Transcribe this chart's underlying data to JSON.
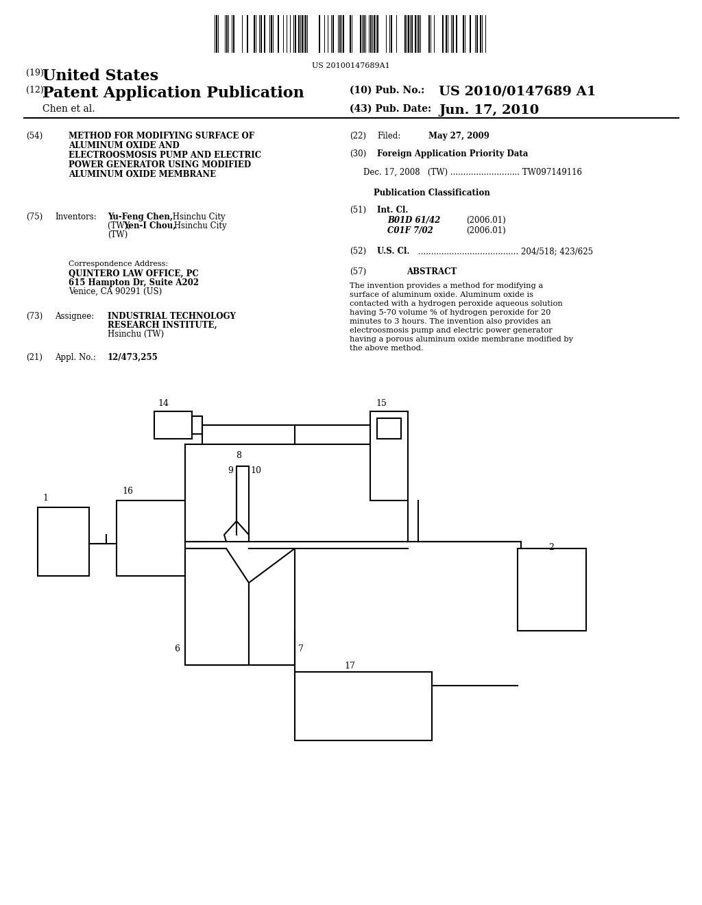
{
  "bg_color": "#ffffff",
  "barcode_text": "US 20100147689A1",
  "header": {
    "country_num": "(19)",
    "country": "United States",
    "type_num": "(12)",
    "type": "Patent Application Publication",
    "pub_num_label": "(10) Pub. No.:",
    "pub_num": "US 2010/0147689 A1",
    "author": "Chen et al.",
    "date_num_label": "(43) Pub. Date:",
    "date": "Jun. 17, 2010"
  },
  "left_col": {
    "field54_num": "(54)",
    "field54_title": "METHOD FOR MODIFYING SURFACE OF\nALUMINUM OXIDE AND\nELECTROOSMOSIS PUMP AND ELECTRIC\nPOWER GENERATOR USING MODIFIED\nALUMINUM OXIDE MEMBRANE",
    "field75_num": "(75)",
    "field75_label": "Inventors:",
    "field75_text": "Yu-Feng Chen, Hsinchu City\n(TW); Yen-I Chou, Hsinchu City\n(TW)",
    "corr_label": "Correspondence Address:",
    "corr_lines": [
      "QUINTERO LAW OFFICE, PC",
      "615 Hampton Dr, Suite A202",
      "Venice, CA 90291 (US)"
    ],
    "field73_num": "(73)",
    "field73_label": "Assignee:",
    "field73_text": "INDUSTRIAL TECHNOLOGY\nRESEARCH INSTITUTE,\nHsinchu (TW)",
    "field21_num": "(21)",
    "field21_label": "Appl. No.:",
    "field21_value": "12/473,255"
  },
  "right_col": {
    "field22_num": "(22)",
    "field22_label": "Filed:",
    "field22_value": "May 27, 2009",
    "field30_num": "(30)",
    "field30_label": "Foreign Application Priority Data",
    "field30_entry": "Dec. 17, 2008   (TW) ........................... TW097149116",
    "pub_class_label": "Publication Classification",
    "field51_num": "(51)",
    "field51_label": "Int. Cl.",
    "field51_entries": [
      [
        "B01D 61/42",
        "(2006.01)"
      ],
      [
        "C01F 7/02",
        "(2006.01)"
      ]
    ],
    "field52_num": "(52)",
    "field52_label": "U.S. Cl.",
    "field52_dots": ".......................................",
    "field52_value": "204/518; 423/625",
    "field57_num": "(57)",
    "field57_label": "ABSTRACT",
    "abstract": "The invention provides a method for modifying a surface of aluminum oxide. Aluminum oxide is contacted with a hydrogen peroxide aqueous solution having 5-70 volume % of hydrogen peroxide for 20 minutes to 3 hours. The invention also provides an electroosmosis pump and electric power generator having a porous aluminum oxide membrane modified by the above method."
  }
}
